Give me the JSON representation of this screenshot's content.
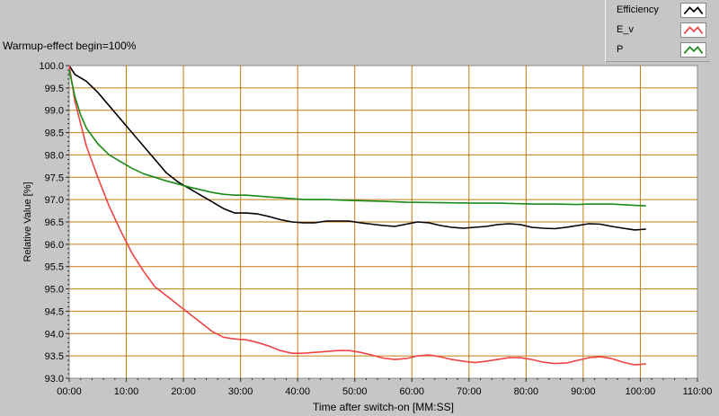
{
  "title": "Warmup-effect begin=100%",
  "colors": {
    "background": "#c6c6c6",
    "plot_bg": "#ffffff",
    "grid": "#c07a10",
    "efficiency": "#000000",
    "e_v": "#ee4444",
    "p": "#1a8a1a"
  },
  "legend_placement": "top-right",
  "chart_data": {
    "type": "line",
    "title": "Warmup-effect begin=100%",
    "xlabel": "Time after switch-on [MM:SS]",
    "ylabel": "Relative Value [%]",
    "xlim": [
      0,
      110
    ],
    "ylim": [
      93.0,
      100.0
    ],
    "grid": true,
    "x_tick_labels": [
      "00:00",
      "10:00",
      "20:00",
      "30:00",
      "40:00",
      "50:00",
      "60:00",
      "70:00",
      "80:00",
      "90:00",
      "100:00",
      "110:00"
    ],
    "y_tick_labels": [
      "100.0",
      "99.5",
      "99.0",
      "98.5",
      "98.0",
      "97.5",
      "97.0",
      "96.5",
      "96.0",
      "95.5",
      "95.0",
      "94.5",
      "94.0",
      "93.5",
      "93.0"
    ],
    "series": [
      {
        "name": "Efficiency",
        "color": "#000000",
        "x": [
          0,
          1,
          3,
          5,
          7,
          9,
          11,
          13,
          15,
          17,
          19,
          21,
          23,
          25,
          27,
          29,
          31,
          33,
          35,
          37,
          39,
          41,
          43,
          45,
          47,
          49,
          51,
          53,
          55,
          57,
          59,
          61,
          63,
          65,
          67,
          69,
          71,
          73,
          75,
          77,
          79,
          81,
          83,
          85,
          87,
          89,
          91,
          93,
          95,
          97,
          99,
          101
        ],
        "y": [
          100.0,
          99.8,
          99.65,
          99.4,
          99.1,
          98.8,
          98.5,
          98.2,
          97.9,
          97.6,
          97.4,
          97.25,
          97.1,
          96.95,
          96.8,
          96.7,
          96.7,
          96.68,
          96.62,
          96.55,
          96.5,
          96.48,
          96.48,
          96.52,
          96.52,
          96.52,
          96.48,
          96.45,
          96.42,
          96.4,
          96.45,
          96.5,
          96.48,
          96.42,
          96.38,
          96.36,
          96.38,
          96.4,
          96.44,
          96.46,
          96.44,
          96.38,
          96.36,
          96.35,
          96.38,
          96.42,
          96.46,
          96.45,
          96.4,
          96.36,
          96.32,
          96.34
        ]
      },
      {
        "name": "E_v",
        "color": "#ee4444",
        "x": [
          0,
          1,
          2,
          3,
          5,
          7,
          9,
          11,
          13,
          15,
          17,
          19,
          21,
          23,
          25,
          27,
          29,
          31,
          33,
          35,
          37,
          39,
          41,
          43,
          45,
          47,
          49,
          51,
          53,
          55,
          57,
          59,
          61,
          63,
          65,
          67,
          69,
          71,
          73,
          75,
          77,
          79,
          81,
          83,
          85,
          87,
          89,
          91,
          93,
          95,
          97,
          99,
          101
        ],
        "y": [
          100.0,
          99.2,
          98.7,
          98.2,
          97.5,
          96.85,
          96.3,
          95.8,
          95.4,
          95.05,
          94.85,
          94.65,
          94.45,
          94.25,
          94.05,
          93.92,
          93.88,
          93.86,
          93.8,
          93.72,
          93.62,
          93.56,
          93.56,
          93.58,
          93.6,
          93.62,
          93.62,
          93.58,
          93.52,
          93.45,
          93.42,
          93.44,
          93.5,
          93.52,
          93.48,
          93.42,
          93.38,
          93.35,
          93.38,
          93.42,
          93.46,
          93.46,
          93.42,
          93.36,
          93.33,
          93.34,
          93.4,
          93.46,
          93.48,
          93.44,
          93.36,
          93.3,
          93.32
        ]
      },
      {
        "name": "P",
        "color": "#1a8a1a",
        "x": [
          0,
          1,
          2,
          3,
          5,
          7,
          9,
          11,
          13,
          15,
          17,
          19,
          21,
          23,
          25,
          27,
          29,
          31,
          35,
          39,
          41,
          45,
          49,
          55,
          59,
          65,
          71,
          75,
          81,
          85,
          89,
          91,
          95,
          99,
          101
        ],
        "y": [
          99.9,
          99.3,
          98.9,
          98.6,
          98.25,
          98.0,
          97.85,
          97.7,
          97.58,
          97.5,
          97.42,
          97.35,
          97.28,
          97.22,
          97.16,
          97.12,
          97.1,
          97.1,
          97.06,
          97.02,
          97.0,
          97.0,
          96.98,
          96.96,
          96.94,
          96.93,
          96.92,
          96.92,
          96.9,
          96.9,
          96.89,
          96.9,
          96.9,
          96.87,
          96.86
        ]
      }
    ]
  }
}
